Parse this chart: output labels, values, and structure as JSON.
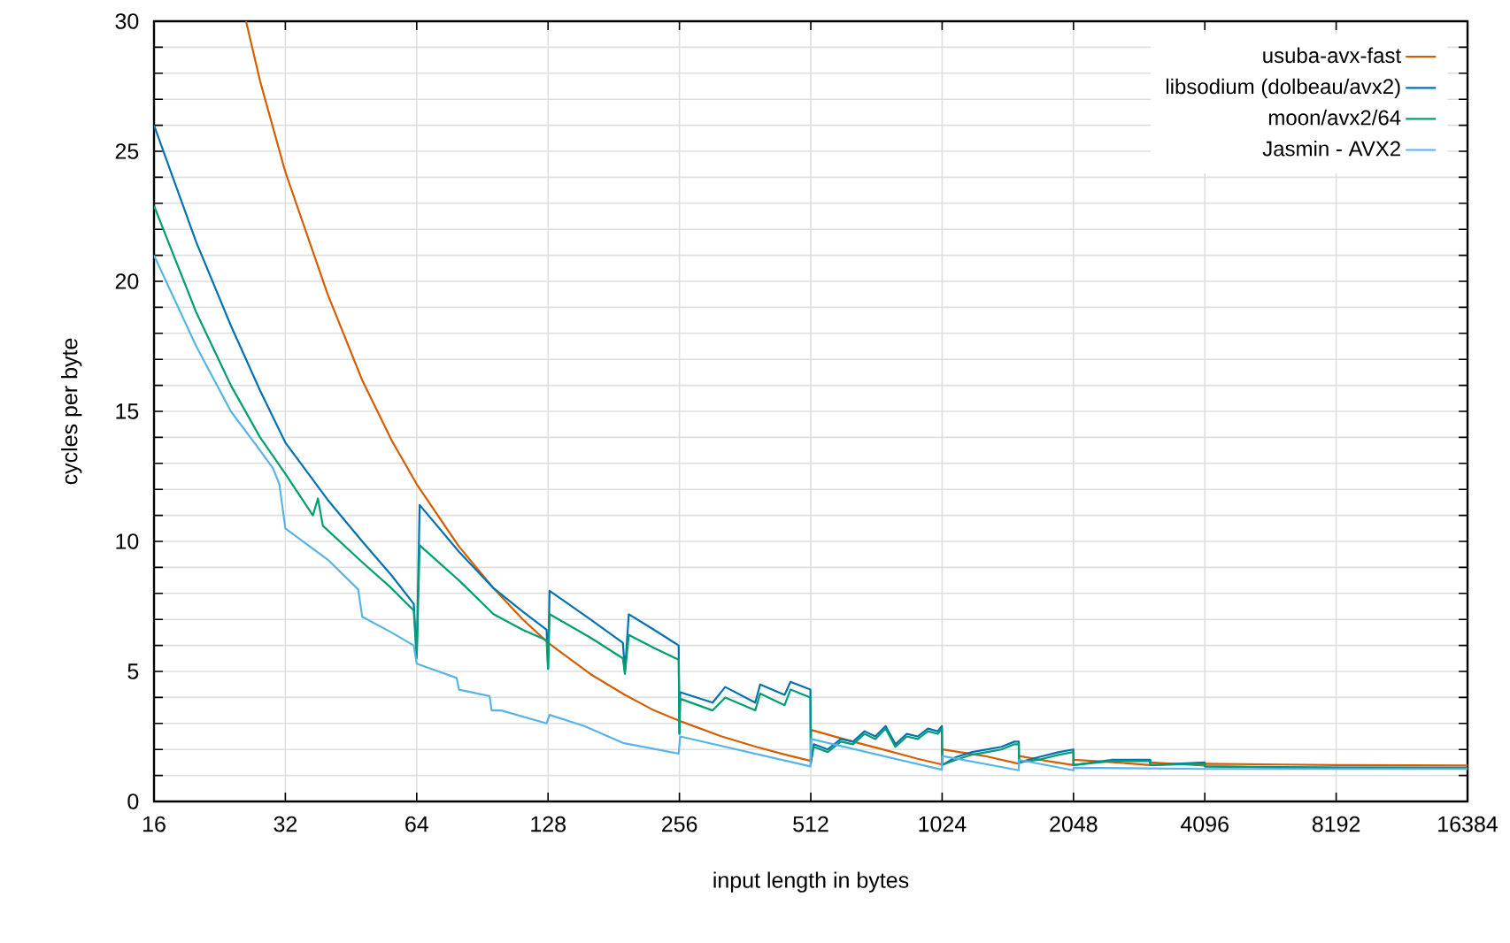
{
  "chart_data": {
    "type": "line",
    "xlabel": "input length in bytes",
    "ylabel": "cycles per byte",
    "log": "x",
    "grid": true,
    "legend": "top right",
    "xlim": [
      16,
      16384
    ],
    "xticks": [
      16,
      32,
      64,
      128,
      256,
      512,
      1024,
      2048,
      4096,
      8192,
      16384
    ],
    "ylim": [
      0,
      30
    ],
    "yticks": [
      0,
      {
        "value": 1,
        "label": null
      },
      {
        "value": 2,
        "label": null
      },
      {
        "value": 3,
        "label": null
      },
      {
        "value": 4,
        "label": null
      },
      5,
      {
        "value": 6,
        "label": null
      },
      {
        "value": 7,
        "label": null
      },
      {
        "value": 8,
        "label": null
      },
      {
        "value": 9,
        "label": null
      },
      10,
      {
        "value": 11,
        "label": null
      },
      {
        "value": 12,
        "label": null
      },
      {
        "value": 13,
        "label": null
      },
      {
        "value": 14,
        "label": null
      },
      15,
      {
        "value": 16,
        "label": null
      },
      {
        "value": 17,
        "label": null
      },
      {
        "value": 18,
        "label": null
      },
      {
        "value": 19,
        "label": null
      },
      20,
      {
        "value": 21,
        "label": null
      },
      {
        "value": 22,
        "label": null
      },
      {
        "value": 23,
        "label": null
      },
      {
        "value": 24,
        "label": null
      },
      25,
      {
        "value": 26,
        "label": null
      },
      {
        "value": 27,
        "label": null
      },
      {
        "value": 28,
        "label": null
      },
      {
        "value": 29,
        "label": null
      },
      30
    ],
    "series": [
      {
        "name": "usuba-avx-fast",
        "color": "#d55e00",
        "x": [
          26,
          28,
          32,
          40,
          48,
          56,
          64,
          80,
          96,
          112,
          128,
          160,
          192,
          224,
          256,
          320,
          384,
          448,
          512,
          513,
          640,
          768,
          896,
          1024,
          1025,
          1280,
          1536,
          1537,
          1792,
          2048,
          2049,
          2560,
          3072,
          3073,
          4096,
          4097,
          6144,
          8192,
          16384
        ],
        "values": [
          30,
          27.7,
          24.2,
          19.5,
          16.2,
          13.9,
          12.2,
          9.8,
          8.2,
          7.0,
          6.1,
          4.9,
          4.1,
          3.5,
          3.1,
          2.5,
          2.1,
          1.8,
          1.56,
          2.75,
          2.3,
          1.95,
          1.65,
          1.42,
          2.0,
          1.75,
          1.45,
          1.75,
          1.55,
          1.4,
          1.6,
          1.5,
          1.4,
          1.5,
          1.38,
          1.45,
          1.42,
          1.4,
          1.38
        ]
      },
      {
        "name": "libsodium (dolbeau/avx2)",
        "color": "#0072b2",
        "x": [
          16,
          20,
          24,
          28,
          32,
          40,
          48,
          56,
          63,
          64,
          65,
          80,
          96,
          112,
          127,
          128,
          129,
          160,
          190,
          192,
          196,
          224,
          255,
          256,
          257,
          305,
          326,
          382,
          392,
          446,
          460,
          511,
          512,
          520,
          560,
          600,
          640,
          680,
          720,
          760,
          800,
          850,
          900,
          950,
          1000,
          1023,
          1024,
          1100,
          1200,
          1300,
          1400,
          1500,
          1535,
          1536,
          1700,
          1900,
          2047,
          2048,
          2500,
          3071,
          3072,
          4095,
          4096,
          6000,
          8192,
          16384
        ],
        "values": [
          26.0,
          21.5,
          18.3,
          15.8,
          13.8,
          11.6,
          10.0,
          8.7,
          7.6,
          5.6,
          11.4,
          9.6,
          8.2,
          7.3,
          6.6,
          5.1,
          8.1,
          7.0,
          6.1,
          5.0,
          7.2,
          6.6,
          6.0,
          2.6,
          4.2,
          3.8,
          4.4,
          3.8,
          4.5,
          4.1,
          4.6,
          4.3,
          1.45,
          2.2,
          2.0,
          2.4,
          2.3,
          2.7,
          2.5,
          2.9,
          2.2,
          2.6,
          2.5,
          2.8,
          2.7,
          2.9,
          1.4,
          1.7,
          1.9,
          2.0,
          2.1,
          2.3,
          2.3,
          1.5,
          1.7,
          1.9,
          2.0,
          1.4,
          1.6,
          1.6,
          1.4,
          1.5,
          1.35,
          1.32,
          1.31,
          1.3
        ]
      },
      {
        "name": "moon/avx2/64",
        "color": "#009e73",
        "x": [
          16,
          20,
          24,
          28,
          32,
          37,
          38,
          39,
          48,
          56,
          63,
          64,
          65,
          80,
          96,
          112,
          127,
          128,
          129,
          160,
          190,
          192,
          196,
          224,
          255,
          256,
          257,
          305,
          326,
          382,
          392,
          446,
          460,
          511,
          512,
          520,
          560,
          600,
          640,
          680,
          720,
          760,
          800,
          850,
          900,
          950,
          1000,
          1023,
          1024,
          1100,
          1200,
          1300,
          1400,
          1500,
          1535,
          1536,
          1700,
          1900,
          2047,
          2048,
          2500,
          3071,
          3072,
          4095,
          4096,
          6000,
          8192,
          16384
        ],
        "values": [
          22.9,
          18.8,
          16.0,
          14.0,
          12.6,
          11.0,
          11.65,
          10.6,
          9.2,
          8.2,
          7.35,
          5.5,
          9.85,
          8.5,
          7.2,
          6.6,
          6.2,
          5.1,
          7.2,
          6.3,
          5.5,
          4.9,
          6.4,
          5.9,
          5.45,
          2.6,
          3.95,
          3.5,
          4.0,
          3.5,
          4.15,
          3.7,
          4.3,
          4.0,
          1.5,
          2.1,
          1.9,
          2.3,
          2.2,
          2.6,
          2.4,
          2.8,
          2.1,
          2.5,
          2.4,
          2.7,
          2.6,
          2.8,
          1.4,
          1.6,
          1.8,
          1.9,
          2.0,
          2.2,
          2.2,
          1.5,
          1.6,
          1.8,
          1.9,
          1.4,
          1.55,
          1.55,
          1.4,
          1.45,
          1.35,
          1.31,
          1.3,
          1.29
        ]
      },
      {
        "name": "Jasmin - AVX2",
        "color": "#56b4e9",
        "x": [
          16,
          20,
          24,
          28,
          30,
          31,
          32,
          40,
          47,
          48,
          56,
          63,
          64,
          79,
          80,
          94,
          95,
          100,
          127,
          129,
          155,
          190,
          255,
          257,
          511,
          513,
          1023,
          1025,
          1535,
          1537,
          2047,
          2049,
          4096,
          8192,
          16384
        ],
        "values": [
          21.0,
          17.5,
          15.0,
          13.5,
          12.8,
          12.2,
          10.5,
          9.3,
          8.15,
          7.1,
          6.5,
          6.0,
          5.3,
          4.75,
          4.3,
          4.05,
          3.5,
          3.5,
          3.0,
          3.33,
          2.9,
          2.25,
          1.84,
          2.5,
          1.35,
          2.4,
          1.22,
          1.75,
          1.2,
          1.6,
          1.2,
          1.3,
          1.25,
          1.25,
          1.25
        ]
      }
    ]
  }
}
